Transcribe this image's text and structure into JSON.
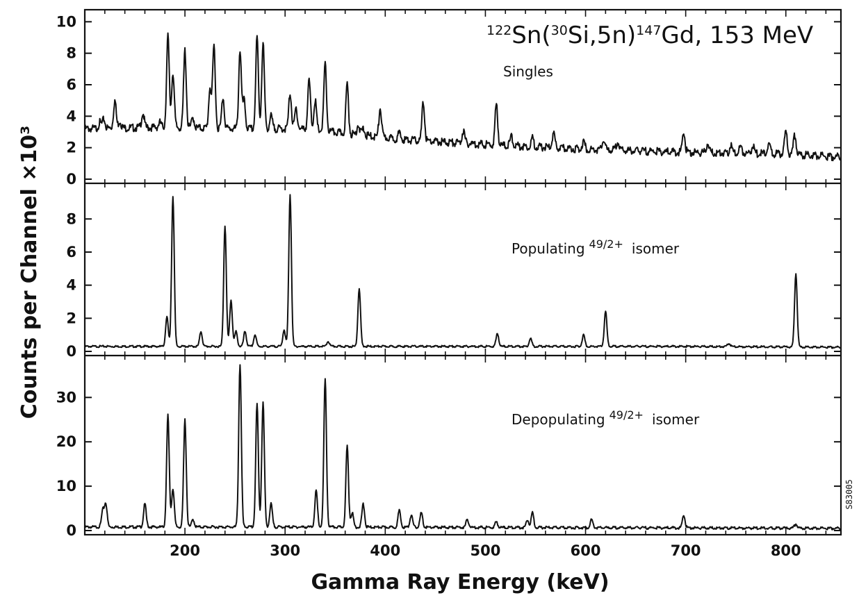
{
  "chart_data": {
    "type": "line",
    "xlabel": "Gamma Ray Energy (keV)",
    "ylabel": "Counts per Channel ×10³",
    "xlim": [
      100,
      855
    ],
    "x_ticks": [
      "200",
      "300",
      "400",
      "500",
      "600",
      "700",
      "800"
    ],
    "stamp": "S83005",
    "panels": [
      {
        "label": "Singles",
        "title": {
          "pre_mass": "122",
          "pre_el": "Sn(",
          "proj_mass": "30",
          "mid": "Si,5n)",
          "prod_mass": "147",
          "post": "Gd, 153 MeV"
        },
        "ylim": [
          0,
          10.5
        ],
        "y_ticks": [
          "0",
          "2",
          "4",
          "6",
          "8",
          "10"
        ],
        "baseline": [
          [
            100,
            3.2
          ],
          [
            180,
            3.3
          ],
          [
            250,
            3.2
          ],
          [
            320,
            3.2
          ],
          [
            360,
            2.9
          ],
          [
            420,
            2.5
          ],
          [
            500,
            2.2
          ],
          [
            600,
            1.9
          ],
          [
            700,
            1.7
          ],
          [
            800,
            1.6
          ],
          [
            855,
            1.4
          ]
        ],
        "peaks": [
          [
            115,
            3.6
          ],
          [
            119,
            3.8
          ],
          [
            130,
            5.0
          ],
          [
            135,
            3.7
          ],
          [
            158,
            4.2
          ],
          [
            175,
            3.6
          ],
          [
            183,
            9.1
          ],
          [
            188,
            6.8
          ],
          [
            200,
            8.2
          ],
          [
            208,
            3.9
          ],
          [
            225,
            5.8
          ],
          [
            229,
            8.5
          ],
          [
            238,
            5.2
          ],
          [
            255,
            8.2
          ],
          [
            259,
            5.0
          ],
          [
            272,
            9.0
          ],
          [
            278,
            8.7
          ],
          [
            286,
            4.0
          ],
          [
            305,
            5.5
          ],
          [
            311,
            4.5
          ],
          [
            324,
            6.3
          ],
          [
            330,
            5.0
          ],
          [
            340,
            7.3
          ],
          [
            362,
            6.0
          ],
          [
            373,
            3.5
          ],
          [
            378,
            3.2
          ],
          [
            395,
            4.5
          ],
          [
            414,
            2.9
          ],
          [
            438,
            4.9
          ],
          [
            478,
            3.1
          ],
          [
            511,
            4.8
          ],
          [
            526,
            2.7
          ],
          [
            547,
            2.6
          ],
          [
            568,
            2.9
          ],
          [
            598,
            2.4
          ],
          [
            618,
            2.5
          ],
          [
            632,
            2.4
          ],
          [
            698,
            3.0
          ],
          [
            722,
            2.3
          ],
          [
            745,
            2.1
          ],
          [
            755,
            2.1
          ],
          [
            767,
            2.1
          ],
          [
            783,
            2.3
          ],
          [
            800,
            3.0
          ],
          [
            809,
            2.8
          ]
        ]
      },
      {
        "label": "Populating",
        "label_frac": "49/2",
        "label_sup": "+",
        "label_tail": "isomer",
        "ylim": [
          0,
          9.9
        ],
        "y_ticks": [
          "0",
          "2",
          "4",
          "6",
          "8"
        ],
        "baseline": [
          [
            100,
            0.3
          ],
          [
            300,
            0.3
          ],
          [
            500,
            0.3
          ],
          [
            700,
            0.3
          ],
          [
            855,
            0.25
          ]
        ],
        "peaks": [
          [
            182,
            2.1
          ],
          [
            188,
            9.4
          ],
          [
            216,
            1.2
          ],
          [
            240,
            7.6
          ],
          [
            246,
            3.1
          ],
          [
            251,
            1.2
          ],
          [
            260,
            1.2
          ],
          [
            270,
            1.0
          ],
          [
            299,
            1.3
          ],
          [
            305,
            9.5
          ],
          [
            343,
            0.6
          ],
          [
            374,
            3.8
          ],
          [
            512,
            1.1
          ],
          [
            545,
            0.8
          ],
          [
            598,
            1.0
          ],
          [
            620,
            2.4
          ],
          [
            743,
            0.5
          ],
          [
            810,
            4.7
          ]
        ]
      },
      {
        "label": "Depopulating",
        "label_frac": "49/2",
        "label_sup": "+",
        "label_tail": "isomer",
        "ylim": [
          0,
          38.5
        ],
        "y_ticks": [
          "0",
          "10",
          "20",
          "30"
        ],
        "baseline": [
          [
            100,
            0.8
          ],
          [
            300,
            0.8
          ],
          [
            500,
            0.7
          ],
          [
            700,
            0.6
          ],
          [
            855,
            0.5
          ]
        ],
        "peaks": [
          [
            118,
            4.5
          ],
          [
            121,
            6.0
          ],
          [
            160,
            6.0
          ],
          [
            183,
            26.0
          ],
          [
            188,
            9.5
          ],
          [
            200,
            25.0
          ],
          [
            208,
            2.5
          ],
          [
            255,
            37.5
          ],
          [
            272,
            28.5
          ],
          [
            278,
            29.0
          ],
          [
            286,
            6.0
          ],
          [
            331,
            9.0
          ],
          [
            340,
            34.0
          ],
          [
            362,
            19.0
          ],
          [
            367,
            4.0
          ],
          [
            378,
            6.0
          ],
          [
            414,
            4.5
          ],
          [
            426,
            3.5
          ],
          [
            436,
            4.0
          ],
          [
            482,
            2.5
          ],
          [
            511,
            2.0
          ],
          [
            542,
            2.5
          ],
          [
            547,
            4.0
          ],
          [
            606,
            2.5
          ],
          [
            698,
            3.5
          ],
          [
            810,
            1.5
          ]
        ]
      }
    ]
  }
}
